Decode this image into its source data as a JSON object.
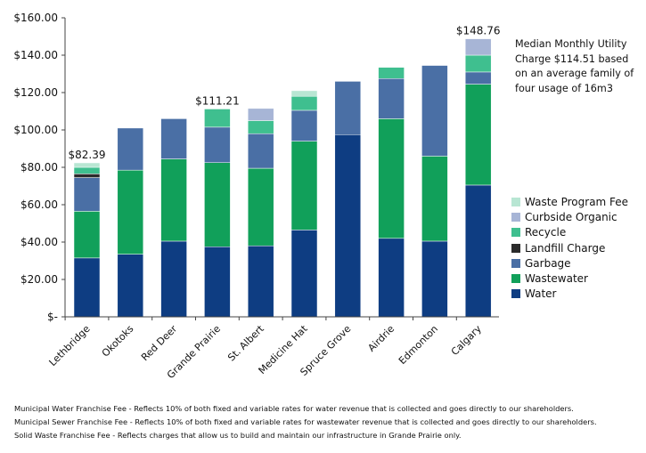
{
  "chart_data": {
    "type": "bar",
    "stacked": true,
    "categories": [
      "Lethbridge",
      "Okotoks",
      "Red Deer",
      "Grande Prairie",
      "St. Albert",
      "Medicine Hat",
      "Spruce Grove",
      "Airdrie",
      "Edmonton",
      "Calgary"
    ],
    "series": [
      {
        "name": "Water",
        "color": "#0e3d82",
        "values": [
          31.5,
          33.5,
          40.5,
          37.5,
          38,
          46.5,
          97.5,
          42,
          40.5,
          70.5
        ]
      },
      {
        "name": "Wastewater",
        "color": "#11a05a",
        "values": [
          25,
          45,
          44,
          45,
          41.5,
          47.5,
          0,
          64,
          45.5,
          54
        ]
      },
      {
        "name": "Garbage",
        "color": "#4a6fa5",
        "values": [
          18,
          22.5,
          21.5,
          19,
          18.5,
          16.5,
          28.5,
          21.5,
          48.5,
          6.5
        ]
      },
      {
        "name": "Landfill Charge",
        "color": "#2b2b2b",
        "values": [
          2,
          0,
          0,
          0,
          0,
          0,
          0,
          0,
          0,
          0
        ]
      },
      {
        "name": "Recycle",
        "color": "#3fbf8f",
        "values": [
          3.5,
          0,
          0,
          9.71,
          7,
          7.5,
          0,
          6,
          0,
          9
        ]
      },
      {
        "name": "Curbside Organic",
        "color": "#a7b5d6",
        "values": [
          0,
          0,
          0,
          0,
          6.5,
          0,
          0,
          0,
          0,
          8.76
        ]
      },
      {
        "name": "Waste Program Fee",
        "color": "#b8e6d3",
        "values": [
          2.39,
          0,
          0,
          0,
          0,
          3,
          0,
          0,
          0,
          0
        ]
      }
    ],
    "total_labels": [
      {
        "category": "Lethbridge",
        "text": "$82.39",
        "value": 82.39
      },
      {
        "category": "Grande Prairie",
        "text": "$111.21",
        "value": 111.21
      },
      {
        "category": "Calgary",
        "text": "$148.76",
        "value": 148.76
      }
    ],
    "y_ticks": [
      "$-",
      "$20.00",
      "$40.00",
      "$60.00",
      "$80.00",
      "$100.00",
      "$120.00",
      "$140.00",
      "$160.00"
    ],
    "ylim": [
      0,
      160
    ],
    "legend_position": "right",
    "grid": false
  },
  "legend": [
    "Waste Program Fee",
    "Curbside Organic",
    "Recycle",
    "Landfill Charge",
    "Garbage",
    "Wastewater",
    "Water"
  ],
  "median_note": "Median Monthly Utility Charge $114.51 based on an average family of four usage of 16m3",
  "footnotes": [
    "Municipal Water Franchise Fee - Reflects 10% of both fixed and variable rates for water revenue that is collected and goes directly to our shareholders.",
    "Municipal Sewer Franchise Fee - Reflects 10% of both fixed and variable rates for wastewater revenue that is collected and goes directly to our shareholders.",
    "Solid Waste Franchise Fee - Reflects charges that allow us to build and maintain our infrastructure in Grande Prairie only."
  ]
}
